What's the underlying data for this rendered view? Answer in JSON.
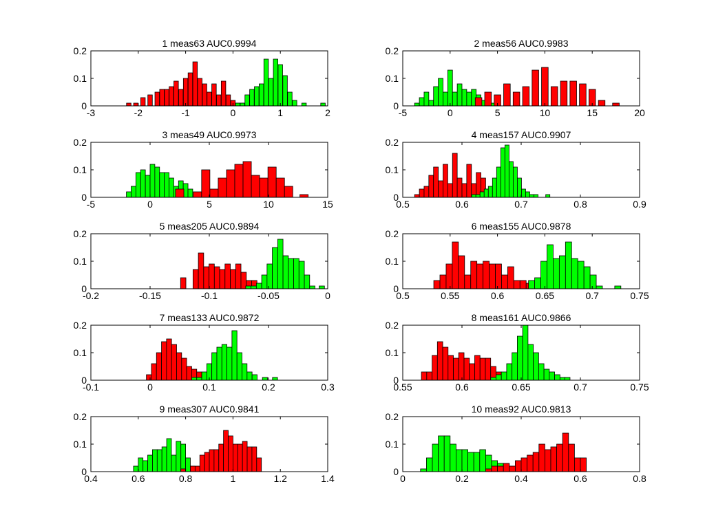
{
  "colors": {
    "class_a": "#00ff00",
    "class_b": "#ff0000",
    "bar_edge": "#000000",
    "axis": "#000000",
    "background": "#ffffff"
  },
  "chart_data": [
    {
      "type": "bar",
      "title": "1 meas63 AUC0.9994",
      "xlim": [
        -3,
        2
      ],
      "ylim": [
        0,
        0.2
      ],
      "xticks": [
        "-3",
        "-2",
        "-1",
        "0",
        "1",
        "2"
      ],
      "yticks": [
        "0",
        "0.1",
        "0.2"
      ],
      "grid": false,
      "series": [
        {
          "color_key": "class_b",
          "bin_width": 0.095,
          "x": [
            -2.2,
            -2.05,
            -1.9,
            -1.75,
            -1.6,
            -1.5,
            -1.4,
            -1.3,
            -1.2,
            -1.1,
            -1.0,
            -0.9,
            -0.8,
            -0.7,
            -0.6,
            -0.5,
            -0.4,
            -0.3,
            -0.2,
            -0.1,
            0.0,
            0.1,
            0.2
          ],
          "values": [
            0.01,
            0.01,
            0.03,
            0.04,
            0.05,
            0.06,
            0.06,
            0.07,
            0.09,
            0.06,
            0.1,
            0.12,
            0.16,
            0.1,
            0.08,
            0.05,
            0.08,
            0.04,
            0.09,
            0.04,
            0.02,
            0.01,
            0.01
          ]
        },
        {
          "color_key": "class_a",
          "bin_width": 0.095,
          "x": [
            0.1,
            0.2,
            0.3,
            0.4,
            0.5,
            0.6,
            0.7,
            0.8,
            0.9,
            1.0,
            1.1,
            1.2,
            1.3,
            1.5,
            1.9
          ],
          "values": [
            0.01,
            0.01,
            0.04,
            0.06,
            0.07,
            0.08,
            0.17,
            0.1,
            0.17,
            0.15,
            0.11,
            0.05,
            0.02,
            0.01,
            0.01
          ]
        }
      ]
    },
    {
      "type": "bar",
      "title": "2 meas56 AUC0.9983",
      "xlim": [
        -5,
        20
      ],
      "ylim": [
        0,
        0.2
      ],
      "xticks": [
        "-5",
        "0",
        "5",
        "10",
        "15",
        "20"
      ],
      "yticks": [
        "0",
        "0.1",
        "0.2"
      ],
      "grid": false,
      "series": [
        {
          "color_key": "class_a",
          "bin_width": 0.5,
          "x": [
            -3.5,
            -3,
            -2.5,
            -2,
            -1.5,
            -1,
            -0.5,
            0,
            0.5,
            1,
            1.5,
            2,
            2.5,
            3,
            3.5,
            4,
            4.5
          ],
          "values": [
            0.01,
            0.03,
            0.05,
            0.02,
            0.07,
            0.1,
            0.05,
            0.13,
            0.05,
            0.08,
            0.06,
            0.05,
            0.06,
            0.04,
            0.02,
            0.04,
            0.01
          ]
        },
        {
          "color_key": "class_b",
          "bin_width": 0.7,
          "x": [
            3,
            4,
            5,
            6,
            7,
            8,
            9,
            10,
            11,
            12,
            13,
            14,
            15,
            16,
            17.5
          ],
          "values": [
            0.03,
            0.05,
            0.04,
            0.08,
            0.05,
            0.07,
            0.13,
            0.14,
            0.07,
            0.09,
            0.09,
            0.08,
            0.06,
            0.02,
            0.01
          ]
        }
      ]
    },
    {
      "type": "bar",
      "title": "3 meas49 AUC0.9973",
      "xlim": [
        -5,
        15
      ],
      "ylim": [
        0,
        0.2
      ],
      "xticks": [
        "-5",
        "0",
        "5",
        "10",
        "15"
      ],
      "yticks": [
        "0",
        "0.1",
        "0.2"
      ],
      "grid": false,
      "series": [
        {
          "color_key": "class_a",
          "bin_width": 0.4,
          "x": [
            -1.8,
            -1.4,
            -1,
            -0.6,
            -0.2,
            0.2,
            0.6,
            1,
            1.4,
            1.8,
            2.2,
            2.6,
            3,
            3.4
          ],
          "values": [
            0.02,
            0.04,
            0.09,
            0.1,
            0.08,
            0.12,
            0.11,
            0.09,
            0.09,
            0.07,
            0.04,
            0.06,
            0.05,
            0.03
          ]
        },
        {
          "color_key": "class_b",
          "bin_width": 0.7,
          "x": [
            2.5,
            4,
            4.7,
            5.4,
            6.1,
            6.8,
            7.5,
            8.2,
            8.9,
            9.6,
            10.3,
            11,
            11.7,
            13
          ],
          "values": [
            0.03,
            0.02,
            0.1,
            0.03,
            0.07,
            0.1,
            0.12,
            0.13,
            0.08,
            0.07,
            0.11,
            0.07,
            0.04,
            0.01
          ]
        }
      ]
    },
    {
      "type": "bar",
      "title": "4 meas157 AUC0.9907",
      "xlim": [
        0.5,
        0.9
      ],
      "ylim": [
        0,
        0.2
      ],
      "xticks": [
        "0.5",
        "0.6",
        "0.7",
        "0.8",
        "0.9"
      ],
      "yticks": [
        "0",
        "0.1",
        "0.2"
      ],
      "grid": false,
      "series": [
        {
          "color_key": "class_b",
          "bin_width": 0.008,
          "x": [
            0.524,
            0.532,
            0.54,
            0.548,
            0.556,
            0.564,
            0.572,
            0.58,
            0.588,
            0.596,
            0.604,
            0.612,
            0.62,
            0.628,
            0.636,
            0.644,
            0.652,
            0.66,
            0.668
          ],
          "values": [
            0.01,
            0.03,
            0.04,
            0.08,
            0.11,
            0.06,
            0.12,
            0.05,
            0.16,
            0.07,
            0.05,
            0.12,
            0.05,
            0.09,
            0.07,
            0.03,
            0.01,
            0.01,
            0.01
          ]
        },
        {
          "color_key": "class_a",
          "bin_width": 0.007,
          "x": [
            0.62,
            0.627,
            0.634,
            0.641,
            0.648,
            0.655,
            0.662,
            0.669,
            0.676,
            0.683,
            0.69,
            0.697,
            0.704,
            0.711,
            0.718,
            0.725,
            0.745
          ],
          "values": [
            0.01,
            0.01,
            0.02,
            0.03,
            0.04,
            0.07,
            0.11,
            0.18,
            0.19,
            0.13,
            0.11,
            0.07,
            0.03,
            0.02,
            0.01,
            0.01,
            0.01
          ]
        }
      ]
    },
    {
      "type": "bar",
      "title": "5 meas205 AUC0.9894",
      "xlim": [
        -0.2,
        0
      ],
      "ylim": [
        0,
        0.2
      ],
      "xticks": [
        "-0.2",
        "-0.15",
        "-0.1",
        "-0.05",
        "0"
      ],
      "yticks": [
        "0",
        "0.1",
        "0.2"
      ],
      "grid": false,
      "series": [
        {
          "color_key": "class_b",
          "bin_width": 0.0045,
          "x": [
            -0.122,
            -0.1115,
            -0.107,
            -0.1025,
            -0.098,
            -0.0935,
            -0.089,
            -0.0845,
            -0.08,
            -0.0755,
            -0.071,
            -0.0665,
            -0.062,
            -0.0575,
            -0.053
          ],
          "values": [
            0.04,
            0.07,
            0.13,
            0.08,
            0.09,
            0.08,
            0.07,
            0.09,
            0.07,
            0.09,
            0.06,
            0.03,
            0.03,
            0.02,
            0.01
          ]
        },
        {
          "color_key": "class_a",
          "bin_width": 0.0045,
          "x": [
            -0.067,
            -0.0625,
            -0.058,
            -0.0535,
            -0.049,
            -0.0445,
            -0.04,
            -0.0355,
            -0.031,
            -0.0265,
            -0.022,
            -0.0175,
            -0.013,
            -0.005
          ],
          "values": [
            0.01,
            0.01,
            0.02,
            0.05,
            0.09,
            0.15,
            0.18,
            0.12,
            0.11,
            0.11,
            0.1,
            0.05,
            0.01,
            0.01
          ]
        }
      ]
    },
    {
      "type": "bar",
      "title": "6 meas155 AUC0.9878",
      "xlim": [
        0.5,
        0.75
      ],
      "ylim": [
        0,
        0.2
      ],
      "xticks": [
        "0.5",
        "0.55",
        "0.6",
        "0.65",
        "0.7",
        "0.75"
      ],
      "yticks": [
        "0",
        "0.1",
        "0.2"
      ],
      "grid": false,
      "series": [
        {
          "color_key": "class_b",
          "bin_width": 0.0065,
          "x": [
            0.536,
            0.5425,
            0.549,
            0.5555,
            0.562,
            0.5685,
            0.575,
            0.5815,
            0.588,
            0.5945,
            0.601,
            0.6075,
            0.614,
            0.6205,
            0.627,
            0.6335,
            0.64,
            0.6465,
            0.653
          ],
          "values": [
            0.03,
            0.05,
            0.09,
            0.17,
            0.12,
            0.05,
            0.1,
            0.09,
            0.1,
            0.09,
            0.09,
            0.05,
            0.08,
            0.03,
            0.03,
            0.02,
            0.01,
            0.01,
            0.01
          ]
        },
        {
          "color_key": "class_a",
          "bin_width": 0.0065,
          "x": [
            0.636,
            0.6425,
            0.649,
            0.6555,
            0.662,
            0.6685,
            0.675,
            0.6815,
            0.688,
            0.6945,
            0.701,
            0.7075,
            0.727
          ],
          "values": [
            0.03,
            0.04,
            0.1,
            0.16,
            0.11,
            0.12,
            0.17,
            0.11,
            0.1,
            0.08,
            0.05,
            0.01,
            0.01
          ]
        }
      ]
    },
    {
      "type": "bar",
      "title": "7 meas133 AUC0.9872",
      "xlim": [
        -0.1,
        0.3
      ],
      "ylim": [
        0,
        0.2
      ],
      "xticks": [
        "-0.1",
        "0",
        "0.1",
        "0.2",
        "0.3"
      ],
      "yticks": [
        "0",
        "0.1",
        "0.2"
      ],
      "grid": false,
      "series": [
        {
          "color_key": "class_b",
          "bin_width": 0.0085,
          "x": [
            -0.002,
            0.0065,
            0.015,
            0.0235,
            0.032,
            0.0405,
            0.049,
            0.0575,
            0.066,
            0.0745,
            0.083,
            0.0915,
            0.1
          ],
          "values": [
            0.02,
            0.06,
            0.1,
            0.14,
            0.15,
            0.13,
            0.1,
            0.08,
            0.05,
            0.04,
            0.03,
            0.02,
            0.02
          ]
        },
        {
          "color_key": "class_a",
          "bin_width": 0.0085,
          "x": [
            0.0745,
            0.083,
            0.0915,
            0.1,
            0.1085,
            0.117,
            0.1255,
            0.134,
            0.1425,
            0.151,
            0.1595,
            0.168,
            0.1765,
            0.194,
            0.211
          ],
          "values": [
            0.01,
            0.01,
            0.03,
            0.06,
            0.1,
            0.12,
            0.13,
            0.12,
            0.18,
            0.1,
            0.06,
            0.03,
            0.02,
            0.01,
            0.01
          ]
        }
      ]
    },
    {
      "type": "bar",
      "title": "8 meas161 AUC0.9866",
      "xlim": [
        0.55,
        0.75
      ],
      "ylim": [
        0,
        0.2
      ],
      "xticks": [
        "0.55",
        "0.6",
        "0.65",
        "0.7",
        "0.75"
      ],
      "yticks": [
        "0",
        "0.1",
        "0.2"
      ],
      "grid": false,
      "series": [
        {
          "color_key": "class_b",
          "bin_width": 0.0045,
          "x": [
            0.568,
            0.5725,
            0.577,
            0.5815,
            0.586,
            0.5905,
            0.595,
            0.5995,
            0.604,
            0.6085,
            0.613,
            0.6175,
            0.622,
            0.6265,
            0.631,
            0.6355,
            0.64
          ],
          "values": [
            0.03,
            0.03,
            0.09,
            0.14,
            0.12,
            0.09,
            0.08,
            0.1,
            0.08,
            0.06,
            0.09,
            0.08,
            0.08,
            0.05,
            0.03,
            0.02,
            0.01
          ]
        },
        {
          "color_key": "class_a",
          "bin_width": 0.0045,
          "x": [
            0.6265,
            0.631,
            0.6355,
            0.64,
            0.6445,
            0.649,
            0.6535,
            0.658,
            0.6625,
            0.667,
            0.6715,
            0.676,
            0.6805,
            0.685,
            0.689
          ],
          "values": [
            0.01,
            0.02,
            0.03,
            0.06,
            0.1,
            0.16,
            0.2,
            0.13,
            0.1,
            0.06,
            0.04,
            0.03,
            0.02,
            0.01,
            0.01
          ]
        }
      ]
    },
    {
      "type": "bar",
      "title": "9 meas307 AUC0.9841",
      "xlim": [
        0.4,
        1.4
      ],
      "ylim": [
        0,
        0.2
      ],
      "xticks": [
        "0.4",
        "0.6",
        "0.8",
        "1",
        "1.2",
        "1.4"
      ],
      "yticks": [
        "0",
        "0.1",
        "0.2"
      ],
      "grid": false,
      "series": [
        {
          "color_key": "class_a",
          "bin_width": 0.02,
          "x": [
            0.59,
            0.61,
            0.63,
            0.65,
            0.67,
            0.69,
            0.71,
            0.73,
            0.75,
            0.77,
            0.79,
            0.81,
            0.83
          ],
          "values": [
            0.02,
            0.05,
            0.04,
            0.06,
            0.08,
            0.08,
            0.09,
            0.12,
            0.06,
            0.11,
            0.1,
            0.05,
            0.02
          ]
        },
        {
          "color_key": "class_b",
          "bin_width": 0.02,
          "x": [
            0.79,
            0.83,
            0.85,
            0.87,
            0.89,
            0.91,
            0.93,
            0.95,
            0.97,
            0.99,
            1.01,
            1.03,
            1.05,
            1.07,
            1.09,
            1.11
          ],
          "values": [
            0.01,
            0.02,
            0.02,
            0.06,
            0.07,
            0.08,
            0.08,
            0.1,
            0.15,
            0.13,
            0.1,
            0.1,
            0.11,
            0.09,
            0.09,
            0.05
          ]
        }
      ]
    },
    {
      "type": "bar",
      "title": "10 meas92 AUC0.9813",
      "xlim": [
        0,
        0.8
      ],
      "ylim": [
        0,
        0.2
      ],
      "xticks": [
        "0",
        "0.2",
        "0.4",
        "0.6",
        "0.8"
      ],
      "yticks": [
        "0",
        "0.1",
        "0.2"
      ],
      "grid": false,
      "series": [
        {
          "color_key": "class_a",
          "bin_width": 0.02,
          "x": [
            0.07,
            0.09,
            0.11,
            0.13,
            0.15,
            0.17,
            0.19,
            0.21,
            0.23,
            0.25,
            0.27,
            0.29,
            0.31,
            0.33,
            0.35,
            0.37,
            0.39
          ],
          "values": [
            0.01,
            0.05,
            0.1,
            0.13,
            0.13,
            0.1,
            0.08,
            0.08,
            0.07,
            0.07,
            0.08,
            0.06,
            0.04,
            0.03,
            0.02,
            0.02,
            0.01
          ]
        },
        {
          "color_key": "class_b",
          "bin_width": 0.02,
          "x": [
            0.29,
            0.31,
            0.33,
            0.35,
            0.37,
            0.39,
            0.41,
            0.43,
            0.45,
            0.47,
            0.49,
            0.51,
            0.53,
            0.55,
            0.57,
            0.59,
            0.61
          ],
          "values": [
            0.01,
            0.02,
            0.02,
            0.03,
            0.02,
            0.04,
            0.05,
            0.06,
            0.07,
            0.1,
            0.08,
            0.09,
            0.1,
            0.14,
            0.1,
            0.05,
            0.05
          ]
        }
      ]
    }
  ]
}
